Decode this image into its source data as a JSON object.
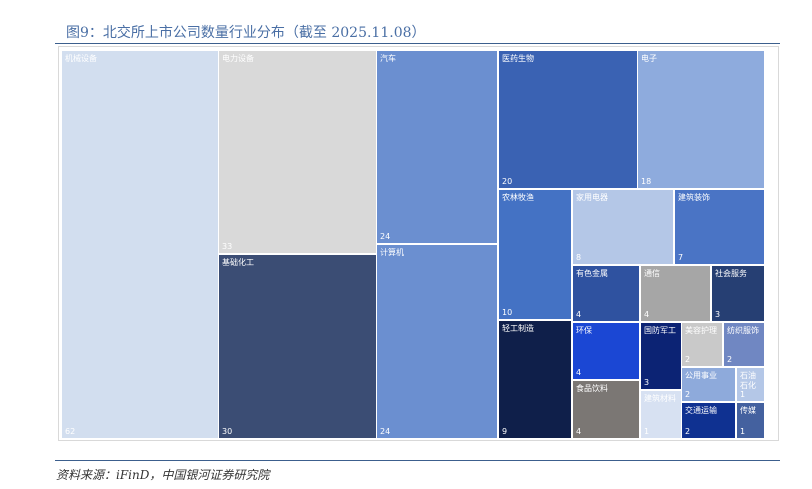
{
  "header": {
    "title": "图9：北交所上市公司数量行业分布（截至 2025.11.08）"
  },
  "footer": {
    "source": "资料来源：iFinD，中国银河证券研究院"
  },
  "chart_data": {
    "type": "treemap",
    "title": "图9：北交所上市公司数量行业分布（截至 2025.11.08）",
    "items": [
      {
        "name": "机械设备",
        "value": 62,
        "color": "#d2deef"
      },
      {
        "name": "电力设备",
        "value": 33,
        "color": "#d9d9d9"
      },
      {
        "name": "基础化工",
        "value": 30,
        "color": "#3b4d74"
      },
      {
        "name": "汽车",
        "value": 24,
        "color": "#6b8fd0"
      },
      {
        "name": "计算机",
        "value": 24,
        "color": "#6b8fd0"
      },
      {
        "name": "医药生物",
        "value": 20,
        "color": "#3a62b3"
      },
      {
        "name": "电子",
        "value": 18,
        "color": "#8eabdd"
      },
      {
        "name": "农林牧渔",
        "value": 10,
        "color": "#4472c4"
      },
      {
        "name": "家用电器",
        "value": 8,
        "color": "#b4c7e7"
      },
      {
        "name": "建筑装饰",
        "value": 7,
        "color": "#4a74c5"
      },
      {
        "name": "轻工制造",
        "value": 9,
        "color": "#0f1f4a"
      },
      {
        "name": "有色金属",
        "value": 4,
        "color": "#2f52a0"
      },
      {
        "name": "通信",
        "value": 4,
        "color": "#a6a6a6"
      },
      {
        "name": "社会服务",
        "value": 3,
        "color": "#263f73"
      },
      {
        "name": "环保",
        "value": 4,
        "color": "#1b47d4"
      },
      {
        "name": "食品饮料",
        "value": 4,
        "color": "#7b7774"
      },
      {
        "name": "国防军工",
        "value": 3,
        "color": "#0c2374"
      },
      {
        "name": "美容护理",
        "value": 2,
        "color": "#c9c9c9"
      },
      {
        "name": "纺织服饰",
        "value": 2,
        "color": "#7087c2"
      },
      {
        "name": "建筑材料",
        "value": 1,
        "color": "#d7e1f2"
      },
      {
        "name": "公用事业",
        "value": 2,
        "color": "#8eaadb"
      },
      {
        "name": "石油石化",
        "value": 1,
        "color": "#b4c7e7"
      },
      {
        "name": "交通运输",
        "value": 2,
        "color": "#0f3191"
      },
      {
        "name": "传媒",
        "value": 1,
        "color": "#44619f"
      }
    ]
  }
}
